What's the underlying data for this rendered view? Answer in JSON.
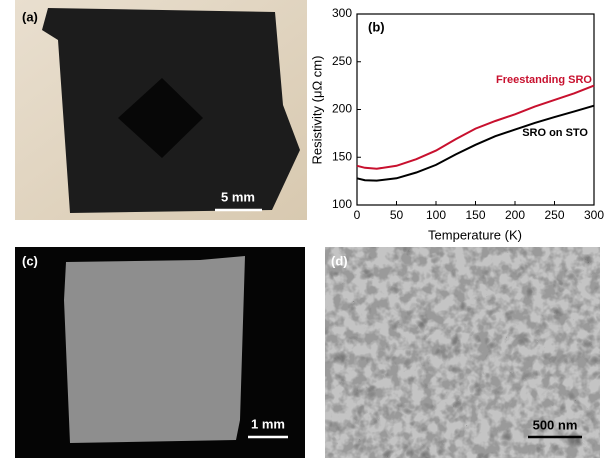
{
  "panels": {
    "a": {
      "label": "(a)",
      "scale": "5 mm"
    },
    "c": {
      "label": "(c)",
      "scale": "1 mm"
    },
    "d": {
      "label": "(d)",
      "scale": "500 nm"
    }
  },
  "chart_data": {
    "type": "line",
    "panel_label": "(b)",
    "x_label": "Temperature (K)",
    "y_label": "Resistivity (μΩ cm)",
    "x": [
      0,
      10,
      25,
      50,
      75,
      100,
      125,
      150,
      175,
      200,
      225,
      250,
      275,
      300
    ],
    "series": [
      {
        "name": "Freestanding SRO",
        "color": "#c8102e",
        "values": [
          141,
          139,
          138,
          141,
          148,
          157,
          169,
          180,
          188,
          195,
          203,
          210,
          217,
          225
        ]
      },
      {
        "name": "SRO on STO",
        "color": "#000000",
        "values": [
          128,
          126,
          125.5,
          128,
          134,
          142,
          153,
          163,
          172,
          179,
          186,
          192,
          198,
          204
        ]
      }
    ],
    "xlim": [
      0,
      300
    ],
    "ylim": [
      100,
      300
    ],
    "xticks": [
      0,
      50,
      100,
      150,
      200,
      250,
      300
    ],
    "yticks": [
      100,
      150,
      200,
      250,
      300
    ]
  }
}
